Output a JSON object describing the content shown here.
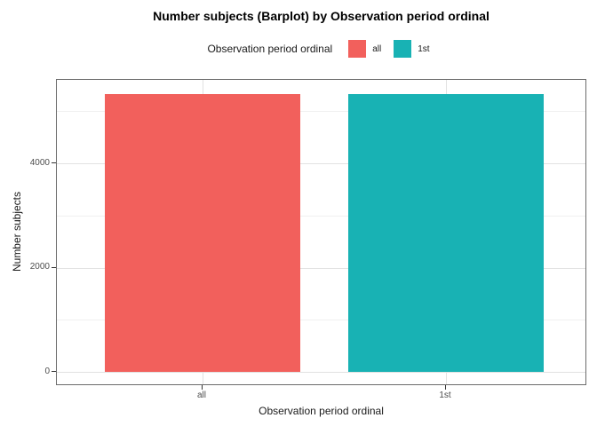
{
  "chart_data": {
    "type": "bar",
    "title": "Number subjects (Barplot) by Observation period ordinal",
    "xlabel": "Observation period ordinal",
    "ylabel": "Number subjects",
    "categories": [
      "all",
      "1st"
    ],
    "values": [
      5340,
      5340
    ],
    "bar_colors": [
      "#F2605C",
      "#18B2B4"
    ],
    "ylim": [
      -280,
      5610
    ],
    "yticks": [
      0,
      2000,
      4000
    ],
    "yminor_ticks": [
      1000,
      3000,
      5000
    ],
    "grid": true,
    "legend": {
      "position": "top",
      "title": "Observation period ordinal",
      "entries": [
        {
          "label": "all",
          "color": "#F2605C"
        },
        {
          "label": "1st",
          "color": "#18B2B4"
        }
      ]
    }
  },
  "colors": {
    "bar_all": "#F2605C",
    "bar_1st": "#18B2B4",
    "grid_major": "#E2E2E2",
    "grid_minor": "#F0F0F0",
    "panel_border": "#6B6B6B",
    "tick_mark": "#333333",
    "tick_label": "#4D4D4D",
    "text": "#1A1A1A",
    "background": "#FFFFFF"
  }
}
